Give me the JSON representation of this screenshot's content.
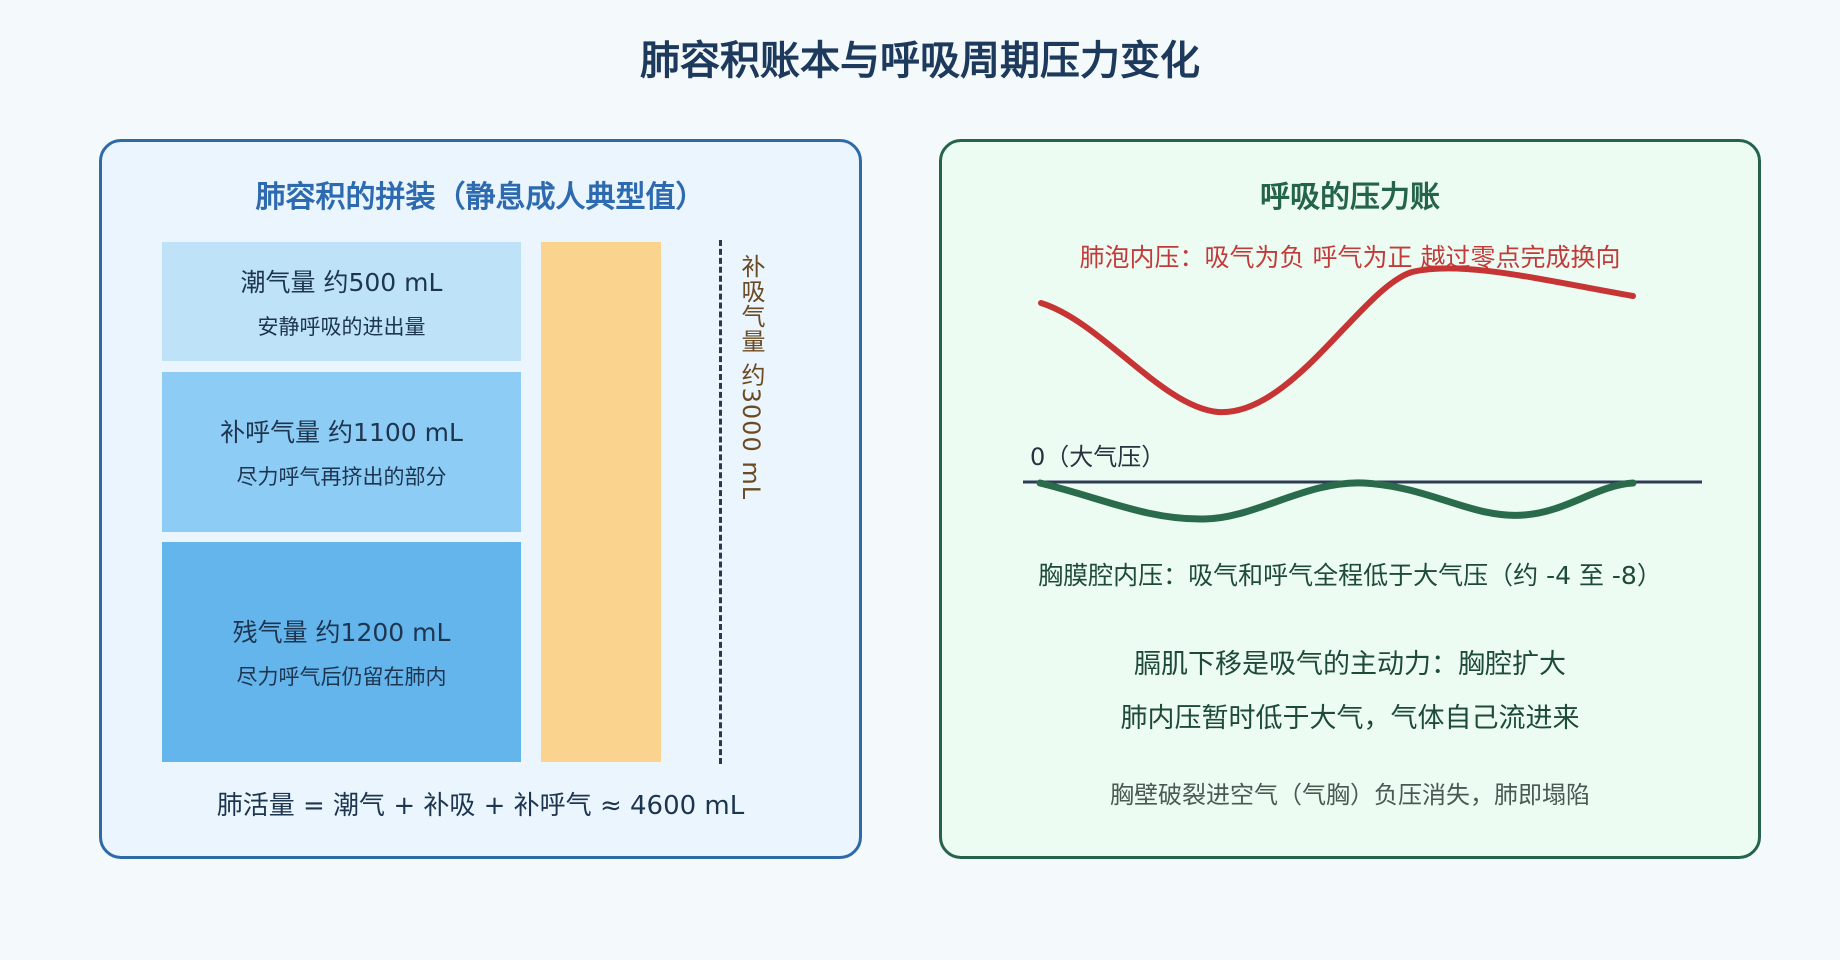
{
  "title": "肺容积账本与呼吸周期压力变化",
  "left_panel": {
    "title": "肺容积的拼装（静息成人典型值）",
    "tidal": {
      "label": "潮气量 约500 mL",
      "desc": "安静呼吸的进出量"
    },
    "erv": {
      "label": "补呼气量 约1100 mL",
      "desc": "尽力呼气再挤出的部分"
    },
    "rv": {
      "label": "残气量 约1200 mL",
      "desc": "尽力呼气后仍留在肺内"
    },
    "irv_label": "补吸气量 约3000 mL",
    "vital_capacity": "肺活量 = 潮气 + 补吸 + 补呼气 ≈ 4600 mL"
  },
  "right_panel": {
    "title": "呼吸的压力账",
    "alveolar_label": "肺泡内压：吸气为负 呼气为正 越过零点完成换向",
    "zero_label": "0（大气压）",
    "pleural_label": "胸膜腔内压：吸气和呼气全程低于大气压（约 -4 至 -8）",
    "line1": "膈肌下移是吸气的主动力：胸腔扩大",
    "line2": "肺内压暂时低于大气，气体自己流进来",
    "line3": "胸壁破裂进空气（气胸）负压消失，肺即塌陷"
  },
  "colors": {
    "alveolar_curve": "#c73434",
    "pleural_curve": "#2a6b4c",
    "baseline": "#2e3b55",
    "tidal_box": "#bee2f8",
    "erv_box": "#8dccf5",
    "rv_box": "#63b5ec",
    "irv_box": "#fad48e"
  }
}
